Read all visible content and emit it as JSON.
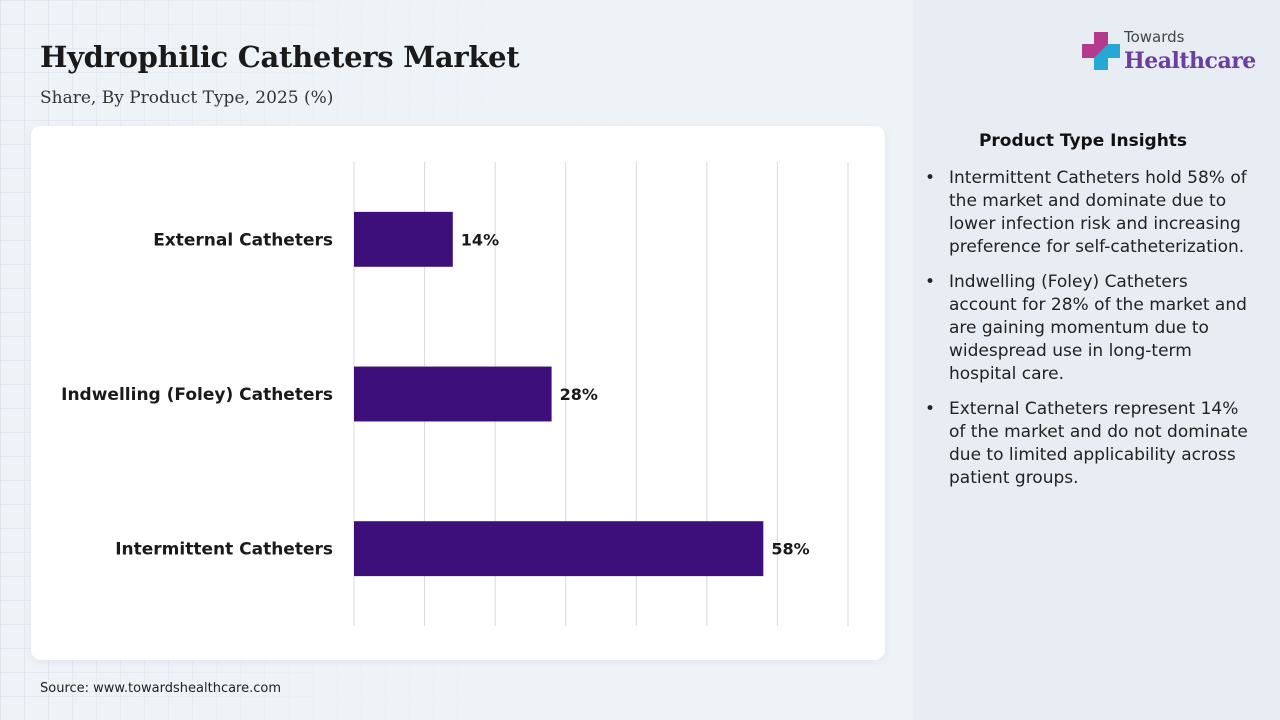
{
  "header": {
    "title": "Hydrophilic Catheters Market",
    "subtitle": "Share, By Product Type, 2025 (%)"
  },
  "brand": {
    "top": "Towards",
    "bottom": "Healthcare",
    "colors": {
      "purple": "#6a3fa0",
      "cyan": "#1fb3d9",
      "pink": "#c03a8a"
    }
  },
  "chart_data": {
    "type": "bar",
    "orientation": "horizontal",
    "categories": [
      "External Catheters",
      "Indwelling (Foley) Catheters",
      "Intermittent Catheters"
    ],
    "values": [
      14,
      28,
      58
    ],
    "value_labels": [
      "14%",
      "28%",
      "58%"
    ],
    "xlim": [
      0,
      70
    ],
    "grid": true,
    "bar_color": "#3d0f7a"
  },
  "insights": {
    "title": "Product Type Insights",
    "items": [
      "Intermittent Catheters hold 58% of the market and dominate due to lower infection risk and increasing preference for self-catheterization.",
      "Indwelling (Foley) Catheters account for 28% of the market and are gaining momentum due to widespread use in long-term hospital care.",
      "External Catheters represent 14% of the market and do not dominate due to limited applicability across patient groups."
    ]
  },
  "footer": {
    "source": "Source: www.towardshealthcare.com"
  }
}
